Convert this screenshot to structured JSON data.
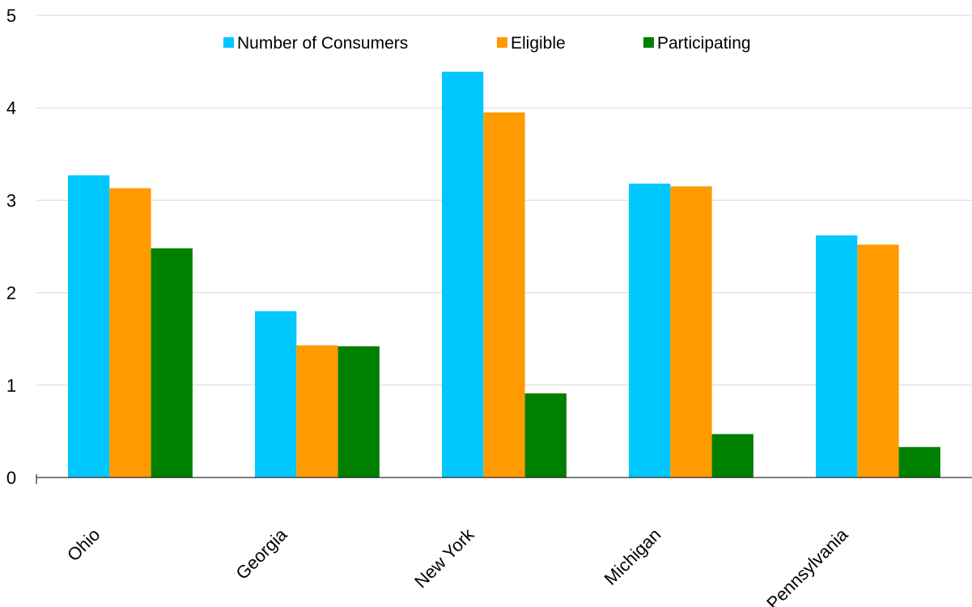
{
  "chart_data": {
    "type": "bar",
    "title": "",
    "xlabel": "",
    "ylabel": "",
    "categories": [
      "Ohio",
      "Georgia",
      "New York",
      "Michigan",
      "Pennsylvania"
    ],
    "series": [
      {
        "name": "Number of Consumers",
        "color": "#00c8ff",
        "values": [
          3.27,
          1.8,
          4.39,
          3.18,
          2.62
        ]
      },
      {
        "name": "Eligible",
        "color": "#ff9a00",
        "values": [
          3.13,
          1.43,
          3.95,
          3.15,
          2.52
        ]
      },
      {
        "name": "Participating",
        "color": "#008000",
        "values": [
          2.48,
          1.42,
          0.91,
          0.47,
          0.33
        ]
      }
    ],
    "ylim": [
      0,
      5
    ],
    "yticks": [
      "0",
      "1",
      "2",
      "3",
      "4",
      "5"
    ],
    "grid": true,
    "legend_position": "top-center",
    "gridline_color": "#d9d9d9",
    "axis_color": "#000000"
  }
}
